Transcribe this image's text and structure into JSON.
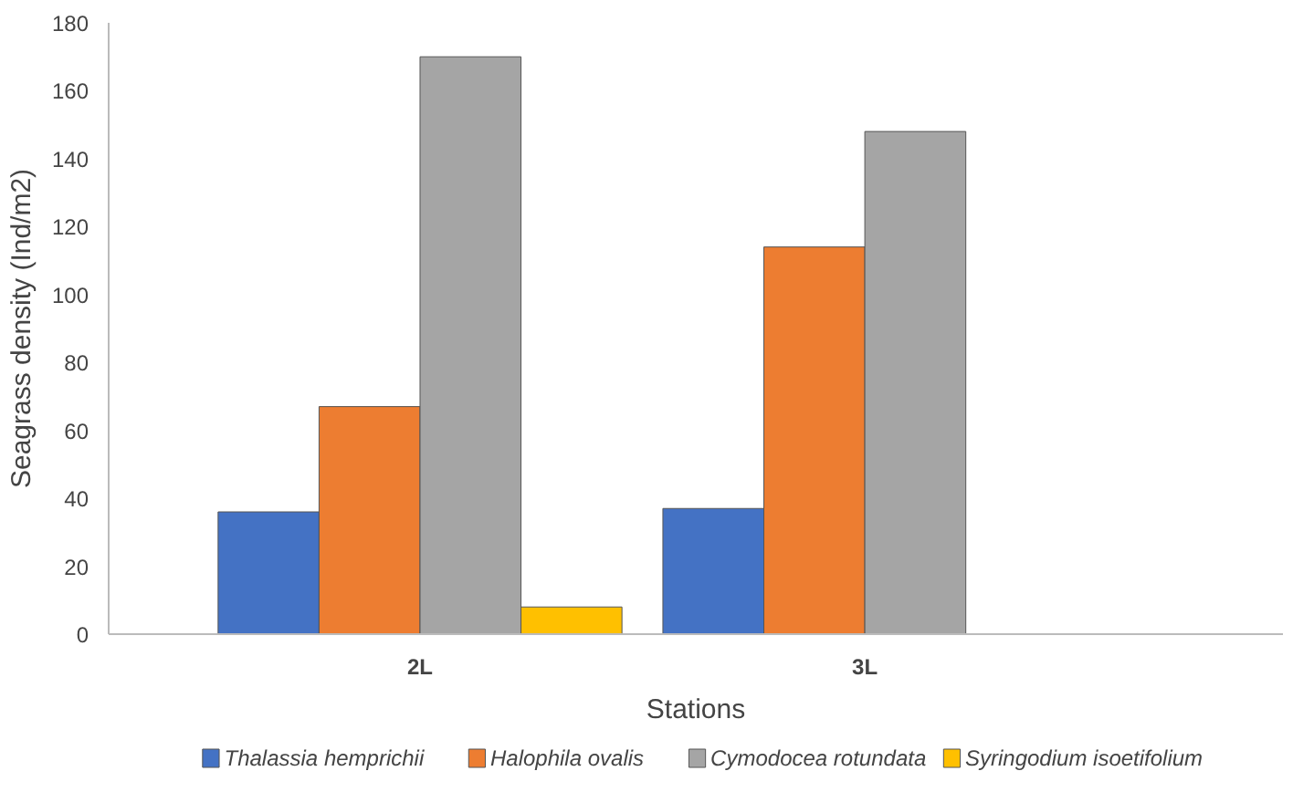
{
  "chart_data": {
    "type": "bar",
    "xlabel": "Stations",
    "ylabel": "Seagrass density (Ind/m2)",
    "categories": [
      "2L",
      "3L"
    ],
    "series": [
      {
        "name": "Thalassia hemprichii",
        "color": "#4472c4",
        "values": [
          36,
          37
        ]
      },
      {
        "name": "Halophila ovalis",
        "color": "#ed7d31",
        "values": [
          67,
          114
        ]
      },
      {
        "name": "Cymodocea rotundata",
        "color": "#a5a5a5",
        "values": [
          170,
          148
        ]
      },
      {
        "name": "Syringodium isoetifolium",
        "color": "#ffc000",
        "values": [
          8,
          null
        ]
      }
    ],
    "ylim": [
      0,
      180
    ],
    "yticks": [
      0,
      20,
      40,
      60,
      80,
      100,
      120,
      140,
      160,
      180
    ],
    "grid": false,
    "legend": "bottom"
  }
}
